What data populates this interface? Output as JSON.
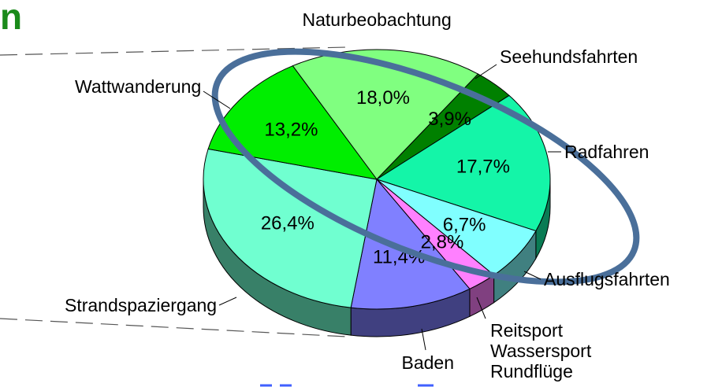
{
  "chart_data": {
    "type": "pie",
    "title": "n",
    "categories": [
      "Naturbeobachtung",
      "Seehundsfahrten",
      "Radfahren",
      "Ausflugsfahrten",
      "Reitsport\nWassersport\nRundflüge",
      "Baden",
      "Strandspaziergang",
      "Wattwanderung"
    ],
    "values": [
      18.0,
      3.9,
      17.7,
      6.7,
      2.8,
      11.4,
      26.4,
      13.2
    ],
    "value_labels": [
      "18,0%",
      "3,9%",
      "17,7%",
      "6,7%",
      "2,8%",
      "11,4%",
      "26,4%",
      "13,2%"
    ],
    "colors": [
      "#80ff80",
      "#008000",
      "#14f5a8",
      "#80ffff",
      "#ff80ff",
      "#8080ff",
      "#70ffd0",
      "#00ee00"
    ]
  }
}
